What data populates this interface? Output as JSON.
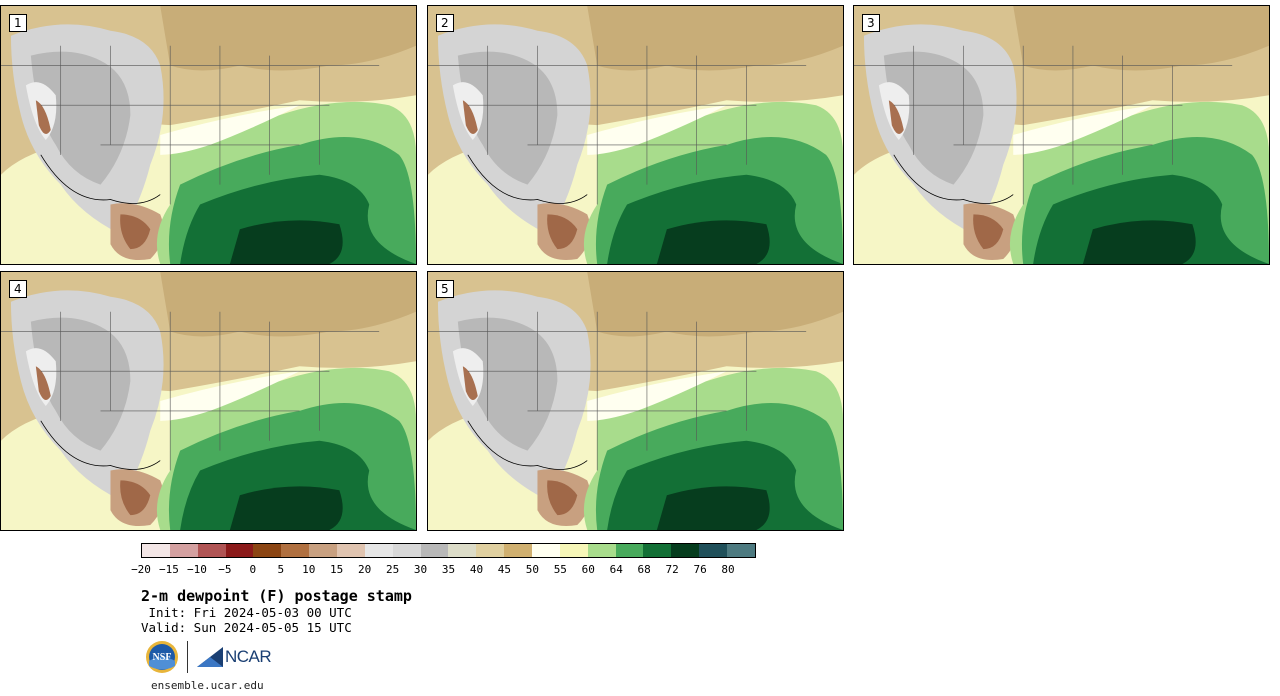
{
  "panels": [
    {
      "label": "1"
    },
    {
      "label": "2"
    },
    {
      "label": "3"
    },
    {
      "label": "4"
    },
    {
      "label": "5"
    }
  ],
  "colorbar": {
    "colors": [
      "#f3e6e6",
      "#d4a0a0",
      "#b05454",
      "#8b1a1a",
      "#8b4513",
      "#b07040",
      "#c8a080",
      "#e0c4b0",
      "#e6e6e6",
      "#d8d8d8",
      "#b8b8b8",
      "#dcdcc8",
      "#e0d0a0",
      "#d0b070",
      "#fffff0",
      "#f6f6b8",
      "#a8dc8c",
      "#48aa5c",
      "#137036",
      "#063d1e",
      "#20505a",
      "#4d7a80"
    ],
    "tick_labels": [
      "−20",
      "−15",
      "−10",
      "−5",
      "0",
      "5",
      "10",
      "15",
      "20",
      "25",
      "30",
      "35",
      "40",
      "45",
      "50",
      "55",
      "60",
      "64",
      "68",
      "72",
      "76",
      "80"
    ]
  },
  "title": "2-m dewpoint (F) postage stamp",
  "init": " Init: Fri 2024-05-03 00 UTC",
  "valid": "Valid: Sun 2024-05-05 15 UTC",
  "logos": {
    "nsf": "NSF",
    "ncar": "NCAR"
  },
  "website": "ensemble.ucar.edu"
}
